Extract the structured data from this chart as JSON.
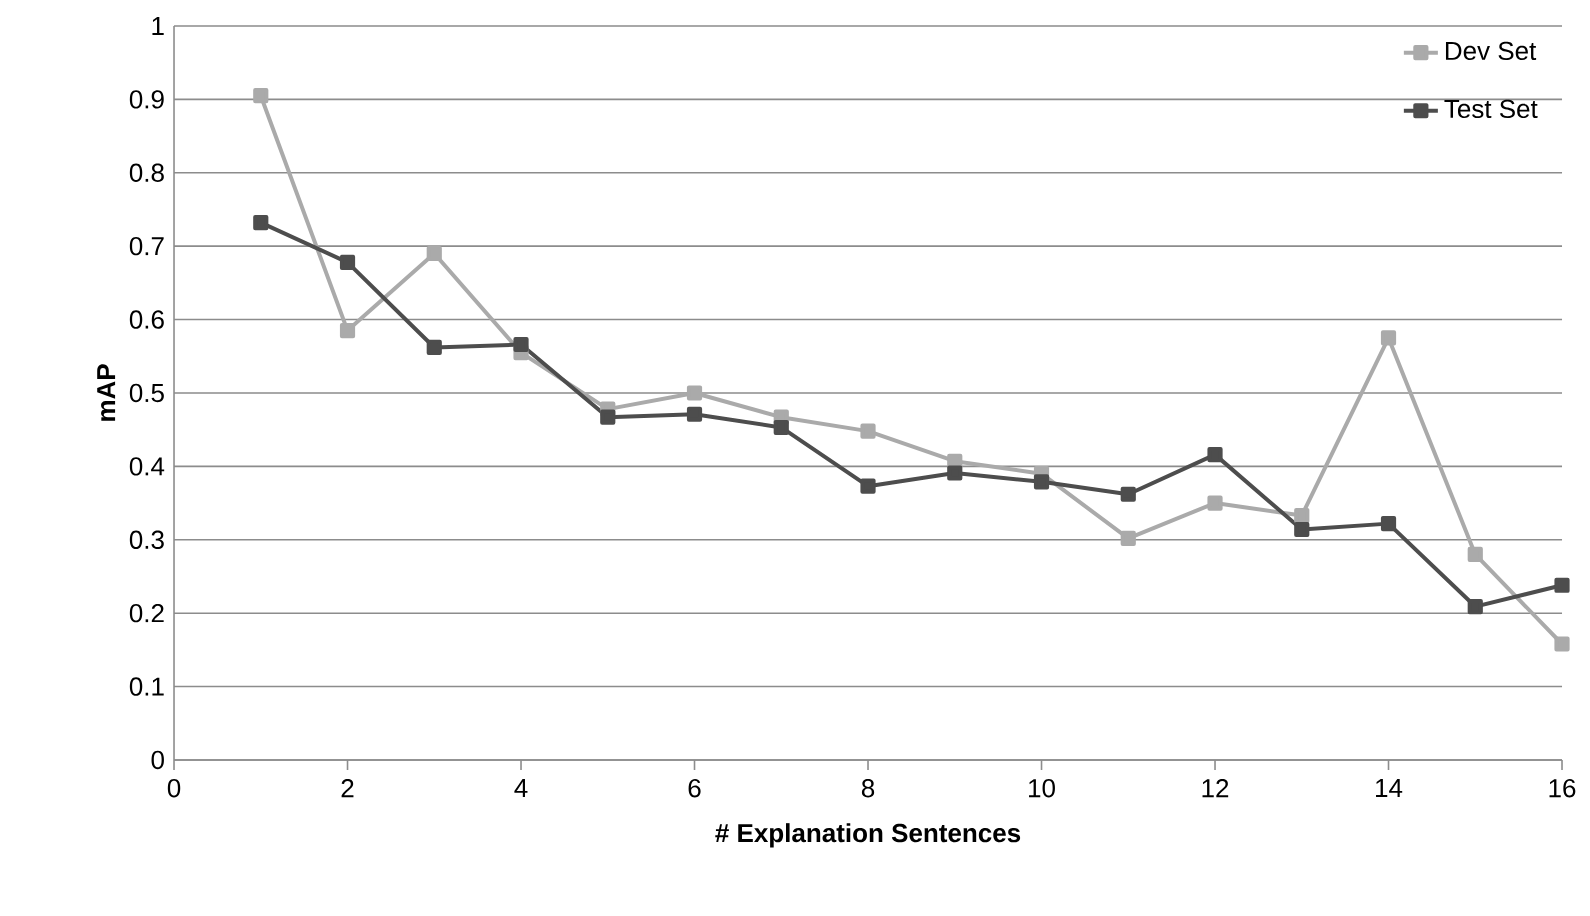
{
  "chart_data": {
    "type": "line",
    "xlabel": "# Explanation Sentences",
    "ylabel": "mAP",
    "x": [
      1,
      2,
      3,
      4,
      5,
      6,
      7,
      8,
      9,
      10,
      11,
      12,
      13,
      14,
      15,
      16
    ],
    "series": [
      {
        "name": "Dev Set",
        "color": "#aaaaaa",
        "values": [
          0.905,
          0.585,
          0.69,
          0.555,
          0.478,
          0.5,
          0.467,
          0.448,
          0.407,
          0.39,
          0.302,
          0.35,
          0.333,
          0.575,
          0.28,
          0.158
        ]
      },
      {
        "name": "Test Set",
        "color": "#4d4d4d",
        "values": [
          0.732,
          0.678,
          0.562,
          0.566,
          0.467,
          0.471,
          0.453,
          0.373,
          0.391,
          0.379,
          0.362,
          0.416,
          0.314,
          0.322,
          0.209,
          0.238
        ]
      }
    ],
    "xlim": [
      0,
      16
    ],
    "ylim": [
      0,
      1
    ],
    "xticks": [
      0,
      2,
      4,
      6,
      8,
      10,
      12,
      14,
      16
    ],
    "yticks": [
      0,
      0.1,
      0.2,
      0.3,
      0.4,
      0.5,
      0.6,
      0.7,
      0.8,
      0.9,
      1
    ],
    "grid": "y",
    "legend": "top right",
    "marker": "square",
    "line_style": "solid"
  }
}
